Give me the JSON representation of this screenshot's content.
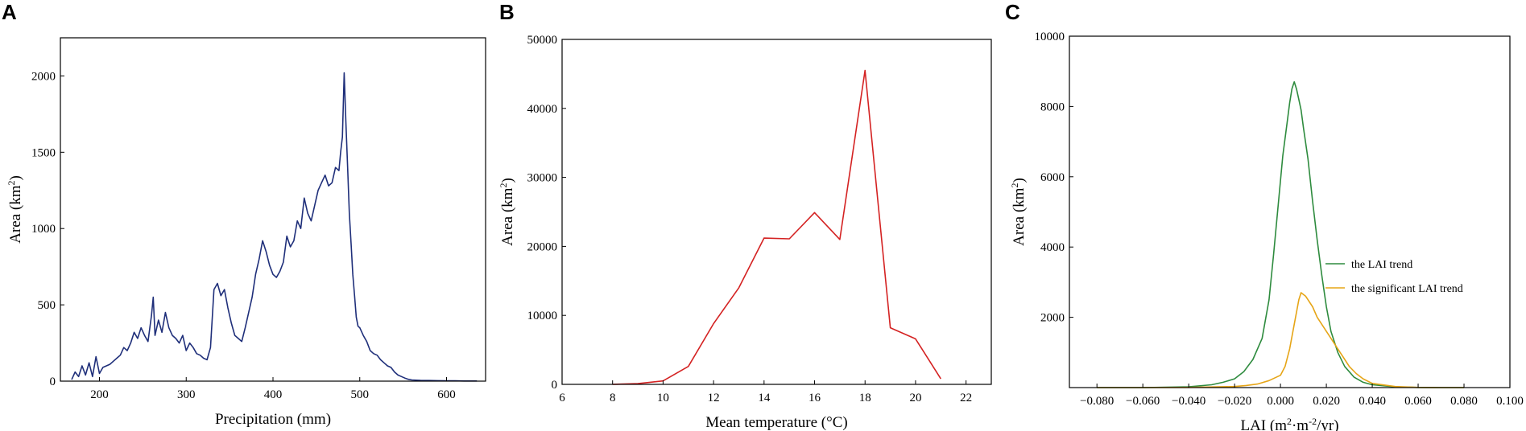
{
  "chart_data": [
    {
      "panel": "A",
      "type": "line",
      "xlabel": "Precipitation (mm)",
      "ylabel_main": "Area (km",
      "ylabel_sup": "2",
      "ylabel_end": ")",
      "xlim": [
        155,
        645
      ],
      "ylim": [
        0,
        2250
      ],
      "xticks": [
        200,
        300,
        400,
        500,
        600
      ],
      "yticks": [
        0,
        500,
        1000,
        1500,
        2000
      ],
      "series": [
        {
          "color": "#1f2f7a",
          "x": [
            168,
            172,
            176,
            180,
            184,
            188,
            192,
            196,
            200,
            204,
            208,
            212,
            216,
            220,
            224,
            228,
            232,
            236,
            240,
            244,
            248,
            252,
            256,
            260,
            262,
            264,
            268,
            272,
            276,
            280,
            284,
            288,
            292,
            296,
            300,
            304,
            308,
            312,
            316,
            320,
            324,
            328,
            332,
            336,
            340,
            344,
            348,
            352,
            356,
            360,
            364,
            368,
            372,
            376,
            380,
            384,
            388,
            392,
            396,
            400,
            404,
            408,
            412,
            416,
            420,
            424,
            428,
            432,
            436,
            440,
            444,
            448,
            452,
            456,
            460,
            464,
            468,
            472,
            476,
            478,
            480,
            482,
            484,
            486,
            488,
            490,
            492,
            494,
            496,
            498,
            500,
            504,
            508,
            512,
            516,
            520,
            524,
            528,
            532,
            536,
            540,
            544,
            548,
            552,
            556,
            560,
            570,
            580,
            590,
            600,
            610,
            620,
            630,
            635
          ],
          "y": [
            10,
            60,
            30,
            100,
            40,
            120,
            30,
            160,
            50,
            90,
            100,
            110,
            130,
            150,
            170,
            220,
            200,
            250,
            320,
            280,
            350,
            300,
            260,
            430,
            550,
            300,
            400,
            320,
            450,
            350,
            300,
            280,
            250,
            300,
            200,
            250,
            220,
            180,
            170,
            150,
            140,
            220,
            600,
            640,
            560,
            600,
            480,
            380,
            300,
            280,
            260,
            350,
            450,
            550,
            700,
            800,
            920,
            850,
            760,
            700,
            680,
            720,
            780,
            950,
            880,
            920,
            1050,
            1000,
            1200,
            1100,
            1050,
            1150,
            1250,
            1300,
            1350,
            1280,
            1300,
            1400,
            1380,
            1500,
            1600,
            2020,
            1700,
            1400,
            1100,
            900,
            700,
            560,
            420,
            360,
            350,
            300,
            260,
            200,
            180,
            170,
            140,
            120,
            100,
            90,
            60,
            40,
            30,
            20,
            12,
            8,
            5,
            4,
            3,
            2,
            2,
            1,
            1,
            1
          ]
        }
      ]
    },
    {
      "panel": "B",
      "type": "line",
      "xlabel": "Mean temperature (°C)",
      "ylabel_main": "Area (km",
      "ylabel_sup": "2",
      "ylabel_end": ")",
      "xlim": [
        6,
        23
      ],
      "ylim": [
        0,
        50000
      ],
      "xticks": [
        6,
        8,
        10,
        12,
        14,
        16,
        18,
        20,
        22
      ],
      "yticks": [
        0,
        10000,
        20000,
        30000,
        40000,
        50000
      ],
      "series": [
        {
          "color": "#d42222",
          "x": [
            8,
            9,
            10,
            11,
            12,
            13,
            14,
            15,
            16,
            17,
            18,
            19,
            20,
            21
          ],
          "y": [
            0,
            100,
            500,
            2600,
            8800,
            14000,
            21200,
            21100,
            24900,
            21000,
            45500,
            8200,
            6600,
            800
          ]
        }
      ]
    },
    {
      "panel": "C",
      "type": "line",
      "xlabel_main": "LAI (m",
      "xlabel_sup1": "2",
      "xlabel_mid": "·m",
      "xlabel_sup2": "-2",
      "xlabel_end": "/yr)",
      "ylabel_main": "Area (km",
      "ylabel_sup": "2",
      "ylabel_end": ")",
      "xlim": [
        -0.092,
        0.1
      ],
      "ylim": [
        0,
        10000
      ],
      "xticks": [
        -0.08,
        -0.06,
        -0.04,
        -0.02,
        0.0,
        0.02,
        0.04,
        0.06,
        0.08,
        0.1
      ],
      "xtick_labels": [
        "−0.080",
        "−0.060",
        "−0.040",
        "−0.020",
        "0.000",
        "0.020",
        "0.040",
        "0.060",
        "0.080",
        "0.100"
      ],
      "yticks": [
        2000,
        4000,
        6000,
        8000,
        10000
      ],
      "legend_position": "right",
      "series": [
        {
          "name": "the LAI trend",
          "color": "#2e8b3e",
          "x": [
            -0.08,
            -0.06,
            -0.04,
            -0.03,
            -0.025,
            -0.02,
            -0.016,
            -0.012,
            -0.008,
            -0.005,
            -0.003,
            -0.001,
            0.001,
            0.003,
            0.004,
            0.005,
            0.006,
            0.007,
            0.008,
            0.009,
            0.01,
            0.012,
            0.014,
            0.016,
            0.018,
            0.02,
            0.022,
            0.025,
            0.028,
            0.032,
            0.036,
            0.04,
            0.05,
            0.06,
            0.07,
            0.08
          ],
          "y": [
            0,
            0,
            20,
            80,
            150,
            250,
            450,
            800,
            1400,
            2500,
            3800,
            5200,
            6600,
            7600,
            8100,
            8500,
            8700,
            8500,
            8200,
            7900,
            7400,
            6500,
            5300,
            4200,
            3200,
            2300,
            1600,
            1000,
            600,
            300,
            150,
            80,
            20,
            5,
            0,
            0
          ]
        },
        {
          "name": "the significant LAI trend",
          "color": "#e6a517",
          "x": [
            -0.08,
            -0.06,
            -0.04,
            -0.02,
            -0.015,
            -0.01,
            -0.005,
            0.0,
            0.002,
            0.004,
            0.006,
            0.008,
            0.009,
            0.01,
            0.011,
            0.012,
            0.014,
            0.016,
            0.018,
            0.02,
            0.022,
            0.024,
            0.026,
            0.028,
            0.03,
            0.033,
            0.036,
            0.04,
            0.05,
            0.06,
            0.07,
            0.08
          ],
          "y": [
            0,
            0,
            5,
            30,
            60,
            100,
            200,
            350,
            600,
            1100,
            1800,
            2500,
            2700,
            2650,
            2600,
            2500,
            2300,
            2000,
            1800,
            1600,
            1400,
            1200,
            1000,
            800,
            600,
            400,
            250,
            120,
            30,
            5,
            0,
            0
          ]
        }
      ]
    }
  ]
}
